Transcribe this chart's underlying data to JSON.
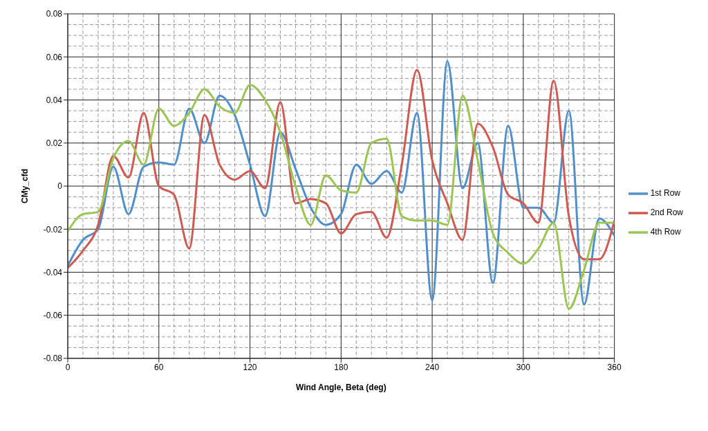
{
  "chart_data": {
    "type": "line",
    "xlabel": "Wind Angle, Beta (deg)",
    "ylabel": "CMy_cfd",
    "x": [
      0,
      10,
      20,
      30,
      40,
      50,
      60,
      70,
      80,
      90,
      100,
      110,
      120,
      130,
      140,
      150,
      160,
      170,
      180,
      190,
      200,
      210,
      220,
      230,
      240,
      250,
      260,
      270,
      280,
      290,
      300,
      310,
      320,
      330,
      340,
      350,
      360
    ],
    "series": [
      {
        "name": "1st Row",
        "color": "#4f8fcc",
        "values": [
          -0.037,
          -0.025,
          -0.02,
          0.009,
          -0.013,
          0.009,
          0.011,
          0.01,
          0.036,
          0.02,
          0.042,
          0.033,
          0.01,
          -0.014,
          0.025,
          0.008,
          -0.01,
          -0.018,
          -0.013,
          0.01,
          0.001,
          0.007,
          -0.003,
          0.034,
          -0.053,
          0.058,
          -0.001,
          0.02,
          -0.045,
          0.028,
          -0.01,
          -0.01,
          -0.017,
          0.035,
          -0.055,
          -0.015,
          -0.023
        ]
      },
      {
        "name": "2nd Row",
        "color": "#cf5a52",
        "values": [
          -0.038,
          -0.03,
          -0.018,
          0.014,
          0.004,
          0.034,
          0.0,
          -0.004,
          -0.029,
          0.033,
          0.01,
          0.003,
          0.007,
          -0.001,
          0.039,
          -0.008,
          -0.006,
          -0.008,
          -0.022,
          -0.013,
          -0.012,
          -0.024,
          0.01,
          0.054,
          0.012,
          -0.008,
          -0.025,
          0.029,
          0.018,
          -0.004,
          -0.008,
          -0.017,
          0.049,
          -0.014,
          -0.034,
          -0.034,
          -0.016
        ]
      },
      {
        "name": "4th Row",
        "color": "#9cc552",
        "values": [
          -0.021,
          -0.013,
          -0.012,
          0.013,
          0.021,
          0.01,
          0.036,
          0.028,
          0.034,
          0.045,
          0.037,
          0.034,
          0.047,
          0.04,
          0.025,
          0.0,
          -0.018,
          0.005,
          -0.002,
          -0.003,
          0.02,
          0.022,
          -0.014,
          -0.016,
          -0.016,
          -0.018,
          0.042,
          0.012,
          -0.022,
          -0.031,
          -0.036,
          -0.029,
          -0.017,
          -0.057,
          -0.039,
          -0.017,
          -0.017
        ]
      }
    ],
    "xlim": [
      0,
      360
    ],
    "xticks": [
      0,
      60,
      120,
      180,
      240,
      300,
      360
    ],
    "ylim": [
      -0.08,
      0.08
    ],
    "yticks": [
      -0.08,
      -0.06,
      -0.04,
      -0.02,
      0,
      0.02,
      0.04,
      0.06,
      0.08
    ],
    "grid": true,
    "legend": "right",
    "marker": "none",
    "line_style": "solid"
  }
}
